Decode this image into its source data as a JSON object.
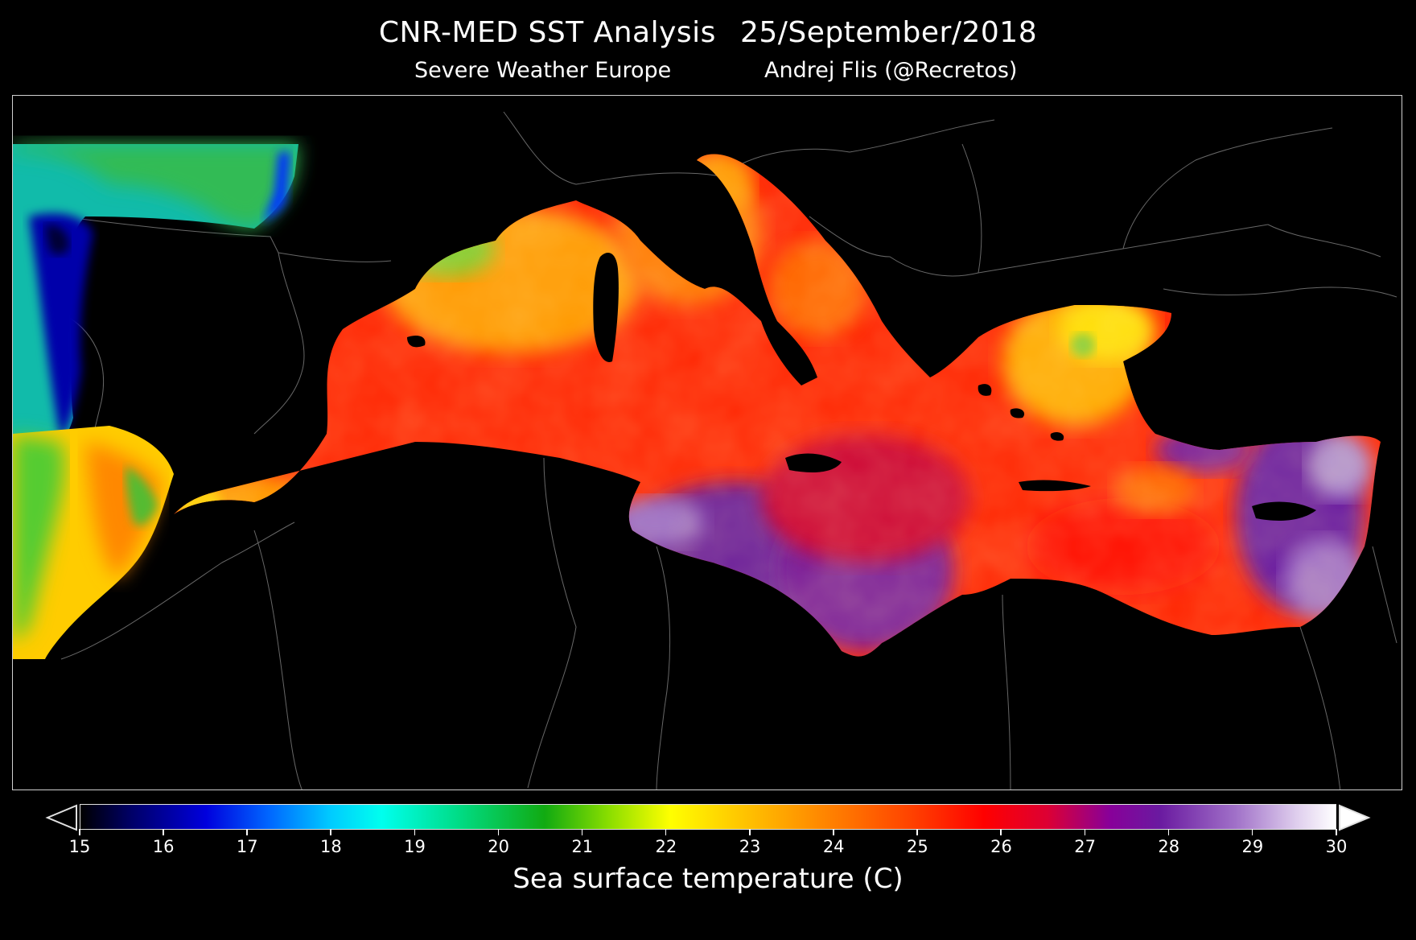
{
  "header": {
    "title_left": "CNR-MED SST Analysis",
    "title_date": "25/September/2018",
    "subtitle_left": "Severe Weather Europe",
    "subtitle_right": "Andrej Flis (@Recretos)"
  },
  "map": {
    "region": "Mediterranean Sea",
    "colors": {
      "land": "#000000",
      "borders": "#8a8a8a",
      "sst_17": "#0000dd",
      "sst_19": "#00ffee",
      "sst_21": "#11aa11",
      "sst_23": "#ffff00",
      "sst_24_5": "#ff8800",
      "sst_26": "#ff0000",
      "sst_27_5": "#880099",
      "sst_29": "#a070c8"
    }
  },
  "colorbar": {
    "label": "Sea surface temperature (C)",
    "min": 15,
    "max": 30,
    "ticks": [
      "15",
      "16",
      "17",
      "18",
      "19",
      "20",
      "21",
      "22",
      "23",
      "24",
      "25",
      "26",
      "27",
      "28",
      "29",
      "30"
    ],
    "extend_left": "open-triangle",
    "extend_right": "filled-triangle"
  }
}
